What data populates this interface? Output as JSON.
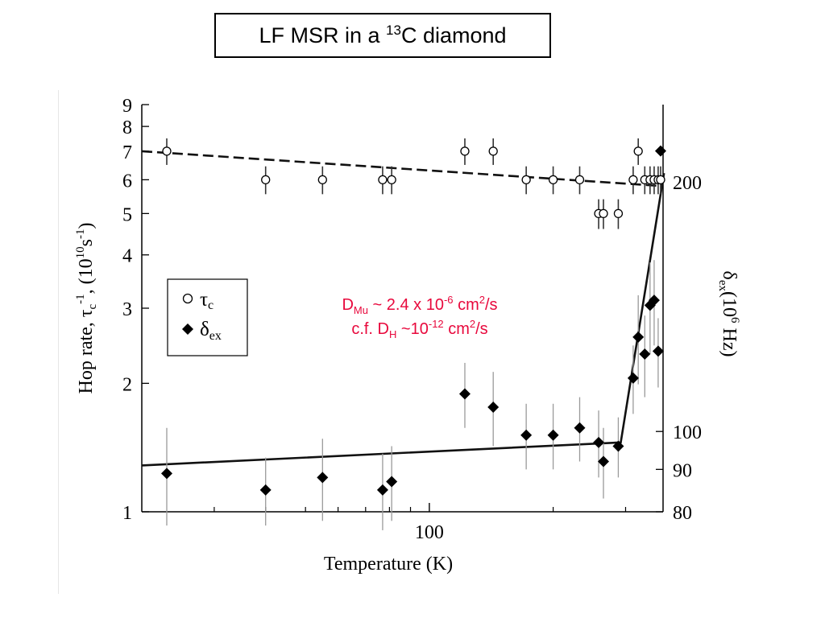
{
  "slide": {
    "title_pre": "LF MSR in a ",
    "title_sup": "13",
    "title_post": "C diamond"
  },
  "annotation": {
    "line1": {
      "base": "D",
      "sub": "Mu",
      "rest": " ~ 2.4 x 10",
      "sup": "-6",
      "rest2": " cm",
      "sup2": "2",
      "tail": "/s"
    },
    "line2": {
      "pre": "c.f. D",
      "sub": "H",
      "rest": " ~10",
      "sup": "-12",
      "rest2": " cm",
      "sup2": "2",
      "tail": "/s"
    }
  },
  "chart_data": {
    "type": "scatter",
    "x_axis": {
      "label": "Temperature (K)",
      "scale": "log",
      "range": [
        20,
        370
      ],
      "tick_labels": [
        "100"
      ],
      "major_ticks": [
        100
      ],
      "minor_ticks": [
        30,
        40,
        50,
        60,
        70,
        80,
        90,
        200,
        300
      ]
    },
    "y_left": {
      "label_parts": [
        "Hop rate, ",
        "τ",
        "c",
        "-1",
        ", (10",
        "10",
        "s",
        "-1",
        ")"
      ],
      "scale": "log",
      "range": [
        1,
        9
      ],
      "tick_labels": [
        "1",
        "2",
        "3",
        "4",
        "5",
        "6",
        "7",
        "8",
        "9"
      ],
      "ticks": [
        1,
        2,
        3,
        4,
        5,
        6,
        7,
        8,
        9
      ]
    },
    "y_right": {
      "label_parts": [
        "δ",
        "ex",
        "(10",
        "6",
        " Hz)"
      ],
      "scale": "log",
      "range": [
        80,
        248
      ],
      "tick_labels": [
        "80",
        "90",
        "100",
        "200"
      ],
      "ticks": [
        80,
        90,
        100,
        200
      ]
    },
    "legend": {
      "position": "left-middle",
      "entries": [
        {
          "symbol": "open-circle",
          "base": "τ",
          "sub": "c"
        },
        {
          "symbol": "filled-diamond",
          "base": "δ",
          "sub": "ex"
        }
      ]
    },
    "series": [
      {
        "marker": "open-circle",
        "axis": "left",
        "points": [
          {
            "x": 23,
            "y": 7.0,
            "err": 0.5
          },
          {
            "x": 40,
            "y": 6.0,
            "err": 0.45
          },
          {
            "x": 55,
            "y": 6.0,
            "err": 0.45
          },
          {
            "x": 77,
            "y": 6.0,
            "err": 0.45
          },
          {
            "x": 81,
            "y": 6.0,
            "err": 0.45
          },
          {
            "x": 122,
            "y": 7.0,
            "err": 0.5
          },
          {
            "x": 143,
            "y": 7.0,
            "err": 0.5
          },
          {
            "x": 172,
            "y": 6.0,
            "err": 0.45
          },
          {
            "x": 200,
            "y": 6.0,
            "err": 0.45
          },
          {
            "x": 232,
            "y": 6.0,
            "err": 0.45
          },
          {
            "x": 258,
            "y": 5.0,
            "err": 0.4
          },
          {
            "x": 265,
            "y": 5.0,
            "err": 0.4
          },
          {
            "x": 288,
            "y": 5.0,
            "err": 0.4
          },
          {
            "x": 313,
            "y": 6.0,
            "err": 0.45
          },
          {
            "x": 322,
            "y": 7.0,
            "err": 0.5
          },
          {
            "x": 334,
            "y": 6.0,
            "err": 0.45
          },
          {
            "x": 344,
            "y": 6.0,
            "err": 0.45
          },
          {
            "x": 352,
            "y": 6.0,
            "err": 0.45
          },
          {
            "x": 360,
            "y": 6.0,
            "err": 0.45
          },
          {
            "x": 365,
            "y": 6.0,
            "err": 0.45
          }
        ]
      },
      {
        "marker": "filled-diamond",
        "axis": "right",
        "points": [
          {
            "x": 23,
            "y": 89,
            "err": 12
          },
          {
            "x": 40,
            "y": 85,
            "err": 8
          },
          {
            "x": 55,
            "y": 88,
            "err": 10
          },
          {
            "x": 77,
            "y": 85,
            "err": 9
          },
          {
            "x": 81,
            "y": 87,
            "err": 9
          },
          {
            "x": 122,
            "y": 111,
            "err": 10
          },
          {
            "x": 143,
            "y": 107,
            "err": 11
          },
          {
            "x": 172,
            "y": 99,
            "err": 9
          },
          {
            "x": 200,
            "y": 99,
            "err": 9
          },
          {
            "x": 232,
            "y": 101,
            "err": 9
          },
          {
            "x": 258,
            "y": 97,
            "err": 9
          },
          {
            "x": 265,
            "y": 92,
            "err": 9
          },
          {
            "x": 288,
            "y": 96,
            "err": 8
          },
          {
            "x": 313,
            "y": 116,
            "err": 11
          },
          {
            "x": 322,
            "y": 130,
            "err": 16
          },
          {
            "x": 334,
            "y": 124,
            "err": 14
          },
          {
            "x": 344,
            "y": 142,
            "err": 18
          },
          {
            "x": 352,
            "y": 144,
            "err": 17
          },
          {
            "x": 360,
            "y": 125,
            "err": 12
          },
          {
            "x": 365,
            "y": 218,
            "err": 0
          }
        ]
      }
    ],
    "fits": [
      {
        "style": "dashed",
        "axis": "left",
        "points": [
          [
            20,
            7.0
          ],
          [
            367,
            5.8
          ]
        ]
      },
      {
        "style": "solid",
        "axis": "right",
        "points": [
          [
            20,
            91
          ],
          [
            292,
            97
          ],
          [
            372,
            205
          ]
        ]
      }
    ],
    "grid": false
  }
}
